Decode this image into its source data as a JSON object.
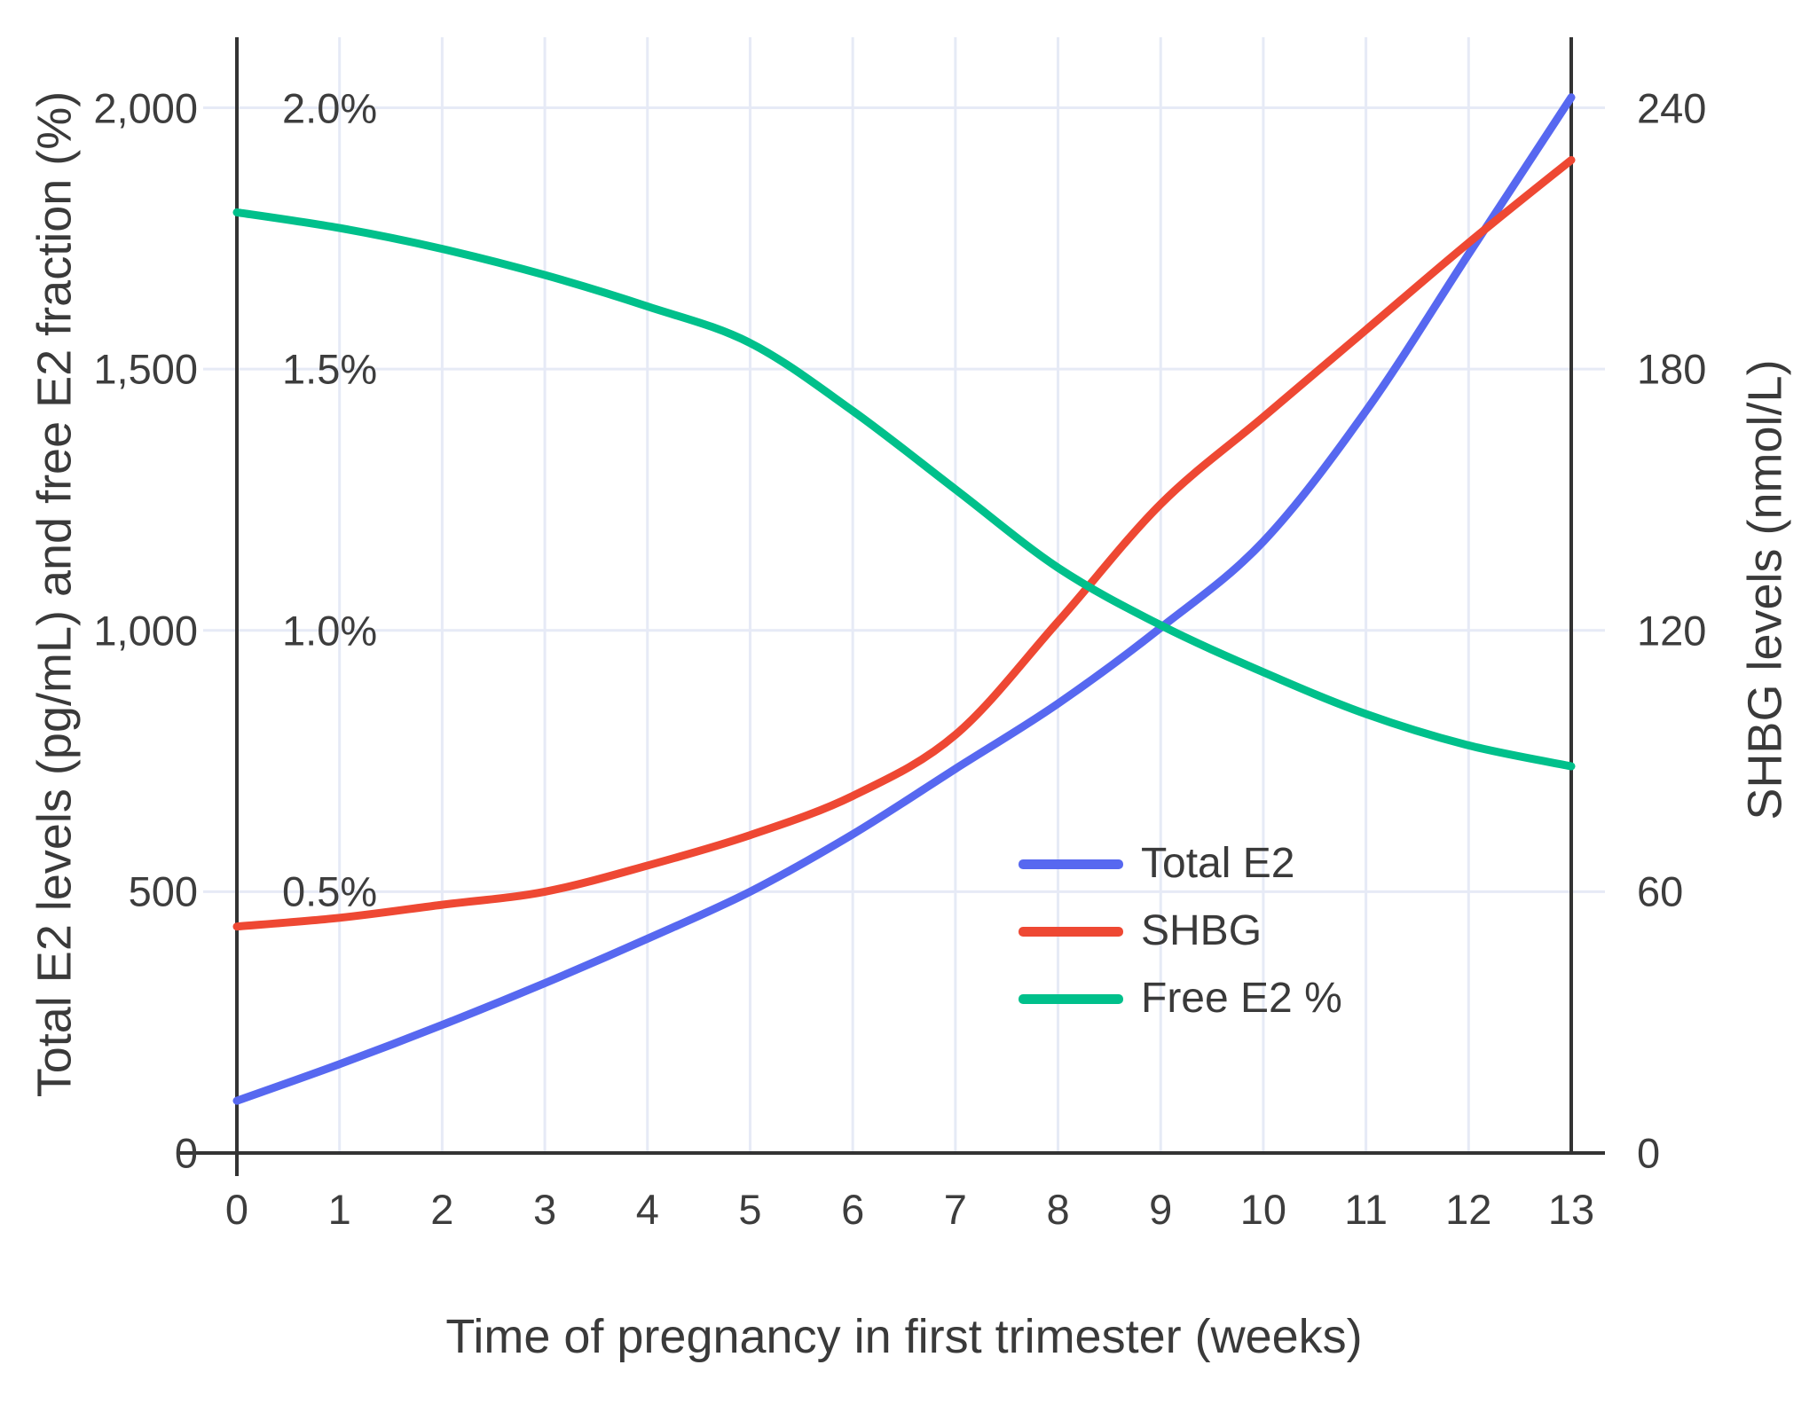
{
  "chart_data": {
    "type": "line",
    "title": "",
    "xlabel": "Time of pregnancy in first trimester (weeks)",
    "ylabel_left": "Total E2 levels (pg/mL) and free E2 fraction (%)",
    "ylabel_right": "SHBG levels (nmol/L)",
    "x": [
      0,
      1,
      2,
      3,
      4,
      5,
      6,
      7,
      8,
      9,
      10,
      11,
      12,
      13
    ],
    "series": [
      {
        "name": "Total E2",
        "axis": "left",
        "units": "pg/mL",
        "color": "#5768f0",
        "values": [
          100,
          170,
          245,
          325,
          410,
          500,
          610,
          735,
          860,
          1005,
          1170,
          1420,
          1720,
          2020
        ]
      },
      {
        "name": "SHBG",
        "axis": "right",
        "units": "nmol/L",
        "color": "#ee4833",
        "values": [
          52,
          54,
          57,
          60,
          66,
          73,
          82,
          96,
          122,
          149,
          169,
          189,
          209,
          228
        ]
      },
      {
        "name": "Free E2 %",
        "axis": "percent",
        "units": "%",
        "color": "#00c08b",
        "values": [
          1.8,
          1.77,
          1.73,
          1.68,
          1.62,
          1.55,
          1.42,
          1.27,
          1.12,
          1.01,
          0.92,
          0.84,
          0.78,
          0.74
        ]
      }
    ],
    "axes": {
      "x_range": [
        0,
        13
      ],
      "x_tick_labels": [
        "0",
        "1",
        "2",
        "3",
        "4",
        "5",
        "6",
        "7",
        "8",
        "9",
        "10",
        "11",
        "12",
        "13"
      ],
      "left_range_top_value": 2135,
      "left_ticks": [
        {
          "value": 0,
          "label": "0"
        },
        {
          "value": 500,
          "label": "500"
        },
        {
          "value": 1000,
          "label": "1,000"
        },
        {
          "value": 1500,
          "label": "1,500"
        },
        {
          "value": 2000,
          "label": "2,000"
        }
      ],
      "percent_ticks": [
        {
          "value": 0.5,
          "left_value": 500,
          "label": "0.5%"
        },
        {
          "value": 1.0,
          "left_value": 1000,
          "label": "1.0%"
        },
        {
          "value": 1.5,
          "left_value": 1500,
          "label": "1.5%"
        },
        {
          "value": 2.0,
          "left_value": 2000,
          "label": "2.0%"
        }
      ],
      "right_ticks": [
        {
          "value": 0,
          "label": "0"
        },
        {
          "value": 60,
          "label": "60"
        },
        {
          "value": 120,
          "label": "120"
        },
        {
          "value": 180,
          "label": "180"
        },
        {
          "value": 240,
          "label": "240"
        }
      ],
      "grid": true,
      "legend_position": "inside-lower-right"
    },
    "colors": {
      "grid": "#e6eaf6",
      "axis_line": "#333333",
      "tick_text": "#3d3d3d",
      "title_text": "#3a3a3a",
      "background": "#ffffff"
    }
  }
}
